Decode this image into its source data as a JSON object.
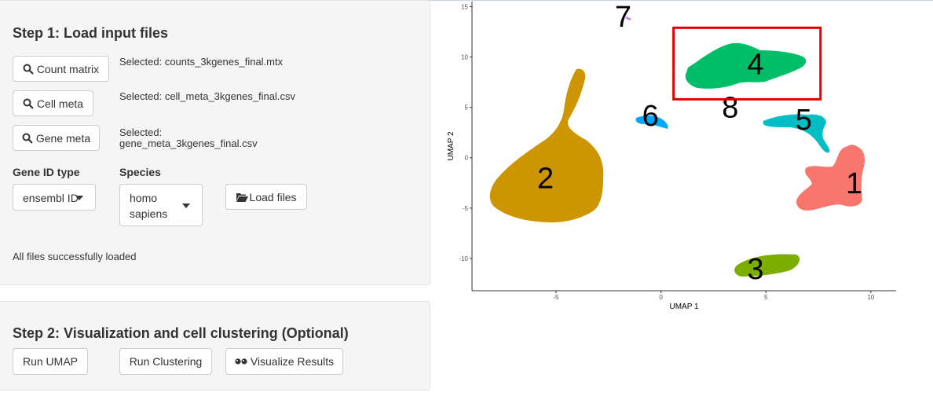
{
  "step1": {
    "title": "Step 1: Load input files",
    "count_matrix_label": "Count matrix",
    "count_matrix_selected": "Selected: counts_3kgenes_final.mtx",
    "cell_meta_label": "Cell meta",
    "cell_meta_selected": "Selected: cell_meta_3kgenes_final.csv",
    "gene_meta_label": "Gene meta",
    "gene_meta_selected_line1": "Selected:",
    "gene_meta_selected_line2": "gene_meta_3kgenes_final.csv",
    "gene_id_type_label": "Gene ID type",
    "gene_id_type_value": "ensembl ID",
    "species_label": "Species",
    "species_value_line1": "homo",
    "species_value_line2": "sapiens",
    "load_files_label": "Load files",
    "status": "All files successfully loaded"
  },
  "step2": {
    "title": "Step 2: Visualization and cell clustering (Optional)",
    "run_umap_label": "Run UMAP",
    "run_clustering_label": "Run Clustering",
    "visualize_label": "Visualize Results"
  },
  "icons": {
    "search": "search-icon",
    "folder": "folder-open-icon",
    "eye": "eye-icon",
    "caret": "caret-down-icon"
  },
  "colors": {
    "cluster_1": "#F8766D",
    "cluster_2": "#CD9600",
    "cluster_3": "#7CAE00",
    "cluster_4": "#00BE67",
    "cluster_5": "#00BFC4",
    "cluster_6": "#00A9FF",
    "cluster_7": "#C77CFF",
    "cluster_8": "#FF61CC",
    "highlight_box": "#E00000"
  },
  "chart_data": {
    "type": "scatter",
    "xlabel": "UMAP 1",
    "ylabel": "UMAP 2",
    "xlim": [
      -9,
      11.2
    ],
    "ylim": [
      -13.2,
      15.5
    ],
    "x_ticks": [
      -5,
      0,
      5,
      10
    ],
    "y_ticks": [
      -10,
      -5,
      0,
      5,
      10,
      15
    ],
    "grid": false,
    "clusters": [
      {
        "label": "1",
        "center": [
          9.2,
          -2.5
        ]
      },
      {
        "label": "2",
        "center": [
          -5.5,
          -2.0
        ]
      },
      {
        "label": "3",
        "center": [
          4.5,
          -11.0
        ]
      },
      {
        "label": "4",
        "center": [
          4.5,
          9.3
        ]
      },
      {
        "label": "5",
        "center": [
          6.8,
          3.8
        ]
      },
      {
        "label": "6",
        "center": [
          -0.5,
          4.2
        ]
      },
      {
        "label": "7",
        "center": [
          -1.8,
          14.0
        ]
      },
      {
        "label": "8",
        "center": [
          3.3,
          5.0
        ]
      }
    ],
    "highlight": {
      "cluster": "4",
      "x_range": [
        0.6,
        7.6
      ],
      "y_range": [
        5.8,
        12.9
      ]
    }
  }
}
